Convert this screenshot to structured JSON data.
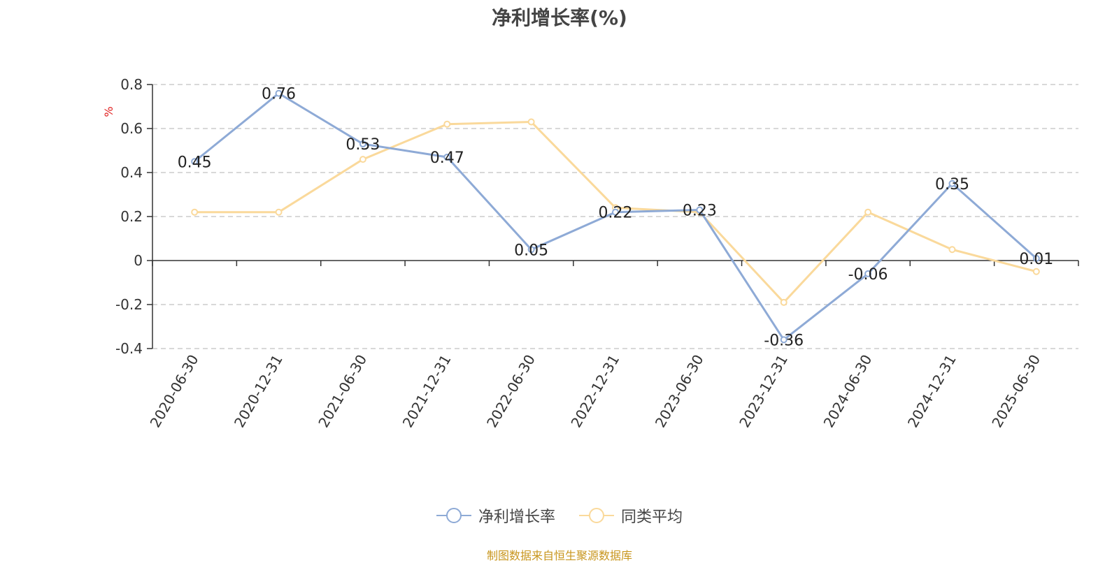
{
  "title": "净利增长率(%)",
  "source": "制图数据来自恒生聚源数据库",
  "chart_data": {
    "type": "line",
    "title": "净利增长率(%)",
    "ylabel": "%",
    "ylim": [
      -0.4,
      0.8
    ],
    "yticks": [
      0.8,
      0.6,
      0.4,
      0.2,
      0,
      -0.2,
      -0.4
    ],
    "ytick_labels": [
      "0.8",
      "0.6",
      "0.4",
      "0.2",
      "0",
      "-0.2",
      "-0.4"
    ],
    "grid": true,
    "legend_position": "bottom",
    "categories": [
      "2020-06-30",
      "2020-12-31",
      "2021-06-30",
      "2021-12-31",
      "2022-06-30",
      "2022-12-31",
      "2023-06-30",
      "2023-12-31",
      "2024-06-30",
      "2024-12-31",
      "2025-06-30"
    ],
    "series": [
      {
        "name": "净利增长率",
        "color": "#8eaad6",
        "values": [
          0.45,
          0.76,
          0.53,
          0.47,
          0.05,
          0.22,
          0.23,
          -0.36,
          -0.06,
          0.35,
          0.01
        ],
        "labels": [
          "0.45",
          "0.76",
          "0.53",
          "0.47",
          "0.05",
          "0.22",
          "0.23",
          "-0.36",
          "-0.06",
          "0.35",
          "0.01"
        ]
      },
      {
        "name": "同类平均",
        "color": "#fad99b",
        "values": [
          0.22,
          0.22,
          0.46,
          0.62,
          0.63,
          0.24,
          0.22,
          -0.19,
          0.22,
          0.05,
          -0.05
        ]
      }
    ]
  }
}
